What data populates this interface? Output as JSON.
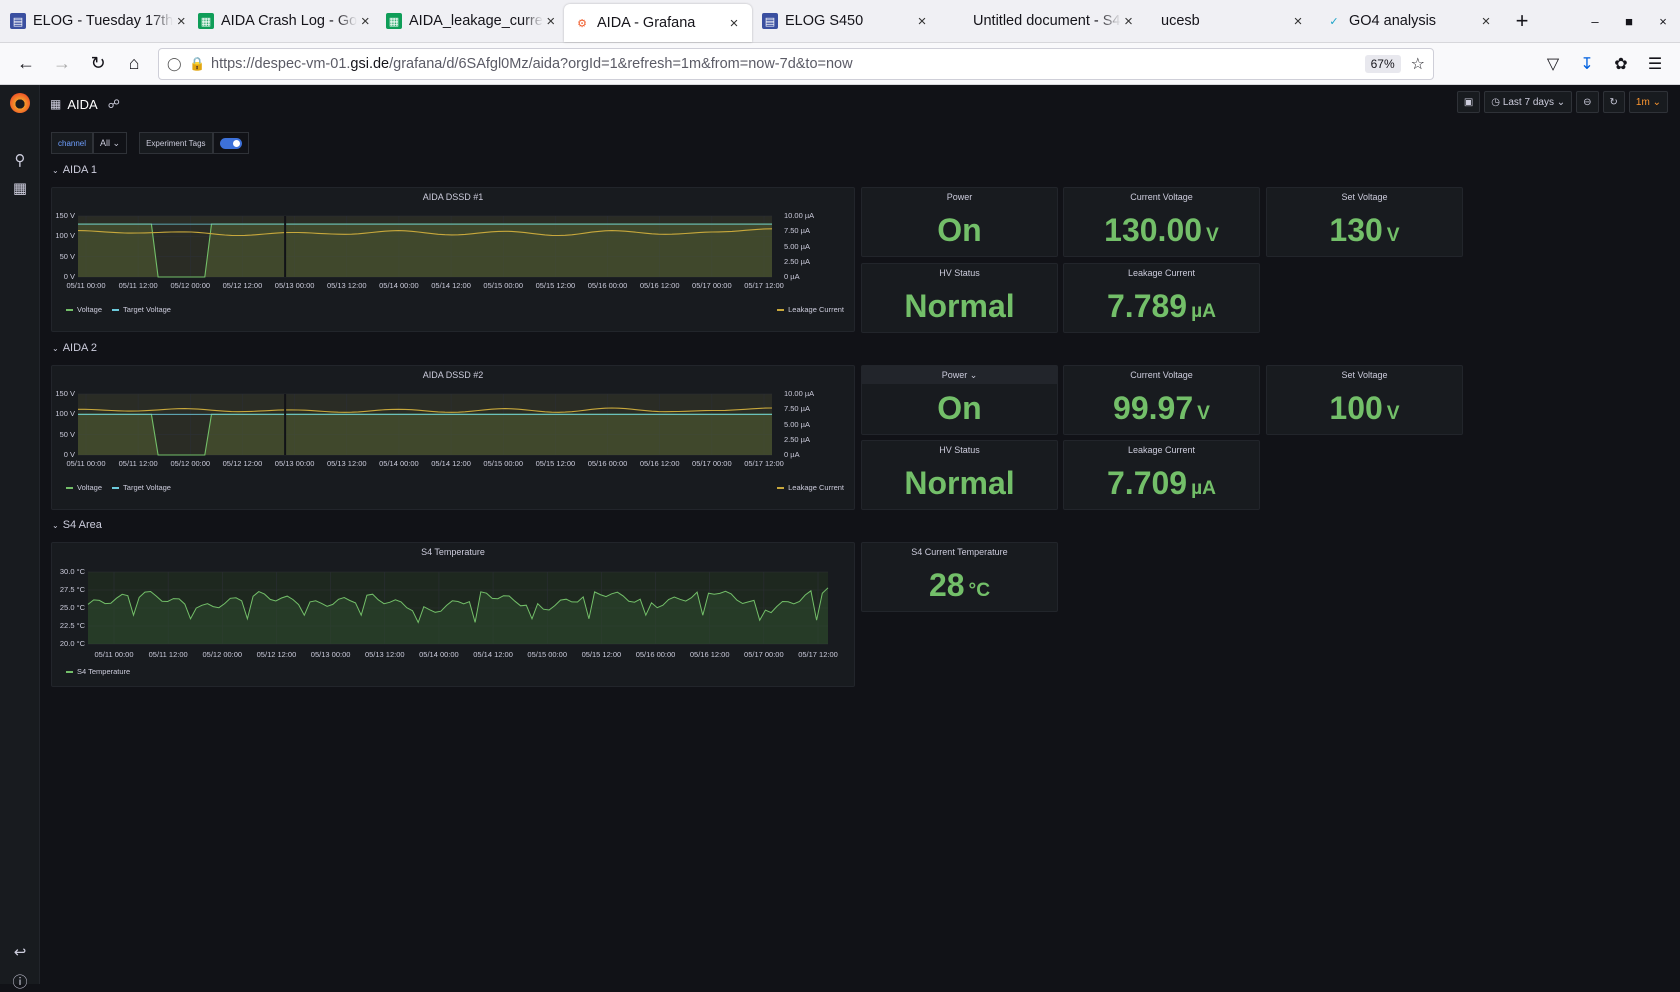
{
  "browser": {
    "tabs": [
      {
        "title": "ELOG - Tuesday 17th",
        "icon": "elog-icon",
        "active": false
      },
      {
        "title": "AIDA Crash Log - Go",
        "icon": "sheets-icon",
        "active": false
      },
      {
        "title": "AIDA_leakage_curre",
        "icon": "sheets-icon",
        "active": false
      },
      {
        "title": "AIDA - Grafana",
        "icon": "grafana-icon",
        "active": true
      },
      {
        "title": "ELOG S450",
        "icon": "elog-icon",
        "active": false
      },
      {
        "title": "Untitled document - S4",
        "icon": "none",
        "active": false
      },
      {
        "title": "ucesb",
        "icon": "none",
        "active": false
      },
      {
        "title": "GO4 analysis",
        "icon": "go4-icon",
        "active": false
      }
    ],
    "url_prefix": "https://despec-vm-01.",
    "url_domain": "gsi.de",
    "url_suffix": "/grafana/d/6SAfgl0Mz/aida?orgId=1&refresh=1m&from=now-7d&to=now",
    "zoom": "67%"
  },
  "dashboard": {
    "title": "AIDA",
    "time_range": "Last 7 days",
    "refresh": "1m",
    "vars": {
      "channel_label": "channel",
      "channel_value": "All",
      "tags_label": "Experiment Tags"
    },
    "rows": {
      "aida1": "AIDA 1",
      "aida2": "AIDA 2",
      "s4": "S4 Area"
    }
  },
  "panels": {
    "aida1": {
      "graph_title": "AIDA DSSD #1",
      "power": {
        "title": "Power",
        "value": "On"
      },
      "current_voltage": {
        "title": "Current Voltage",
        "value": "130.00",
        "unit": "V"
      },
      "set_voltage": {
        "title": "Set Voltage",
        "value": "130",
        "unit": "V"
      },
      "hv_status": {
        "title": "HV Status",
        "value": "Normal"
      },
      "leakage": {
        "title": "Leakage Current",
        "value": "7.789",
        "unit": "µA"
      }
    },
    "aida2": {
      "graph_title": "AIDA DSSD #2",
      "power": {
        "title": "Power",
        "value": "On"
      },
      "current_voltage": {
        "title": "Current Voltage",
        "value": "99.97",
        "unit": "V"
      },
      "set_voltage": {
        "title": "Set Voltage",
        "value": "100",
        "unit": "V"
      },
      "hv_status": {
        "title": "HV Status",
        "value": "Normal"
      },
      "leakage": {
        "title": "Leakage Current",
        "value": "7.709",
        "unit": "µA"
      }
    },
    "s4": {
      "graph_title": "S4 Temperature",
      "current_temp": {
        "title": "S4 Current Temperature",
        "value": "28",
        "unit": "°C"
      }
    }
  },
  "chart_data": [
    {
      "type": "line",
      "title": "AIDA DSSD #1",
      "x_ticks": [
        "05/11 00:00",
        "05/11 12:00",
        "05/12 00:00",
        "05/12 12:00",
        "05/13 00:00",
        "05/13 12:00",
        "05/14 00:00",
        "05/14 12:00",
        "05/15 00:00",
        "05/15 12:00",
        "05/16 00:00",
        "05/16 12:00",
        "05/17 00:00",
        "05/17 12:00"
      ],
      "y_left_ticks": [
        "150 V",
        "100 V",
        "50 V",
        "0 V"
      ],
      "y_right_ticks": [
        "10.00 µA",
        "7.50 µA",
        "5.00 µA",
        "2.50 µA",
        "0 µA"
      ],
      "ylim_left": [
        0,
        150
      ],
      "ylim_right": [
        0,
        10
      ],
      "legend_left": [
        "Voltage",
        "Target Voltage"
      ],
      "legend_right": [
        "Leakage Current"
      ],
      "series": [
        {
          "name": "Voltage",
          "axis": "left",
          "values": [
            130,
            130,
            0,
            130,
            130,
            130,
            130,
            130,
            130,
            130,
            130,
            130,
            130,
            130
          ]
        },
        {
          "name": "Target Voltage",
          "axis": "left",
          "values": [
            130,
            130,
            130,
            130,
            130,
            130,
            130,
            130,
            130,
            130,
            130,
            130,
            130,
            130
          ]
        },
        {
          "name": "Leakage Current",
          "axis": "right",
          "values": [
            7.6,
            7.2,
            7.4,
            6.8,
            7.3,
            7.0,
            7.6,
            6.9,
            7.5,
            6.8,
            7.6,
            7.0,
            7.4,
            7.9
          ]
        }
      ]
    },
    {
      "type": "line",
      "title": "AIDA DSSD #2",
      "x_ticks": [
        "05/11 00:00",
        "05/11 12:00",
        "05/12 00:00",
        "05/12 12:00",
        "05/13 00:00",
        "05/13 12:00",
        "05/14 00:00",
        "05/14 12:00",
        "05/15 00:00",
        "05/15 12:00",
        "05/16 00:00",
        "05/16 12:00",
        "05/17 00:00",
        "05/17 12:00"
      ],
      "y_left_ticks": [
        "150 V",
        "100 V",
        "50 V",
        "0 V"
      ],
      "y_right_ticks": [
        "10.00 µA",
        "7.50 µA",
        "5.00 µA",
        "2.50 µA",
        "0 µA"
      ],
      "ylim_left": [
        0,
        150
      ],
      "ylim_right": [
        0,
        10
      ],
      "legend_left": [
        "Voltage",
        "Target Voltage"
      ],
      "legend_right": [
        "Leakage Current"
      ],
      "series": [
        {
          "name": "Voltage",
          "axis": "left",
          "values": [
            100,
            100,
            0,
            100,
            100,
            100,
            100,
            100,
            100,
            100,
            100,
            100,
            100,
            100
          ]
        },
        {
          "name": "Target Voltage",
          "axis": "left",
          "values": [
            100,
            100,
            100,
            100,
            100,
            100,
            100,
            100,
            100,
            100,
            100,
            100,
            100,
            100
          ]
        },
        {
          "name": "Leakage Current",
          "axis": "right",
          "values": [
            7.5,
            7.2,
            7.6,
            7.1,
            7.4,
            7.0,
            7.5,
            7.0,
            7.6,
            7.0,
            7.7,
            7.1,
            7.3,
            7.7
          ]
        }
      ]
    },
    {
      "type": "line",
      "title": "S4 Temperature",
      "x_ticks": [
        "05/11 00:00",
        "05/11 12:00",
        "05/12 00:00",
        "05/12 12:00",
        "05/13 00:00",
        "05/13 12:00",
        "05/14 00:00",
        "05/14 12:00",
        "05/15 00:00",
        "05/15 12:00",
        "05/16 00:00",
        "05/16 12:00",
        "05/17 00:00",
        "05/17 12:00"
      ],
      "y_ticks": [
        "30.0 °C",
        "27.5 °C",
        "25.0 °C",
        "22.5 °C",
        "20.0 °C"
      ],
      "ylim": [
        20,
        30
      ],
      "legend": [
        "S4 Temperature"
      ],
      "series": [
        {
          "name": "S4 Temperature",
          "values": [
            25.5,
            27.0,
            25.0,
            26.8,
            25.5,
            26.5,
            24.5,
            27.0,
            25.0,
            27.2,
            25.5,
            27.4,
            24.8,
            27.8
          ]
        }
      ]
    }
  ]
}
